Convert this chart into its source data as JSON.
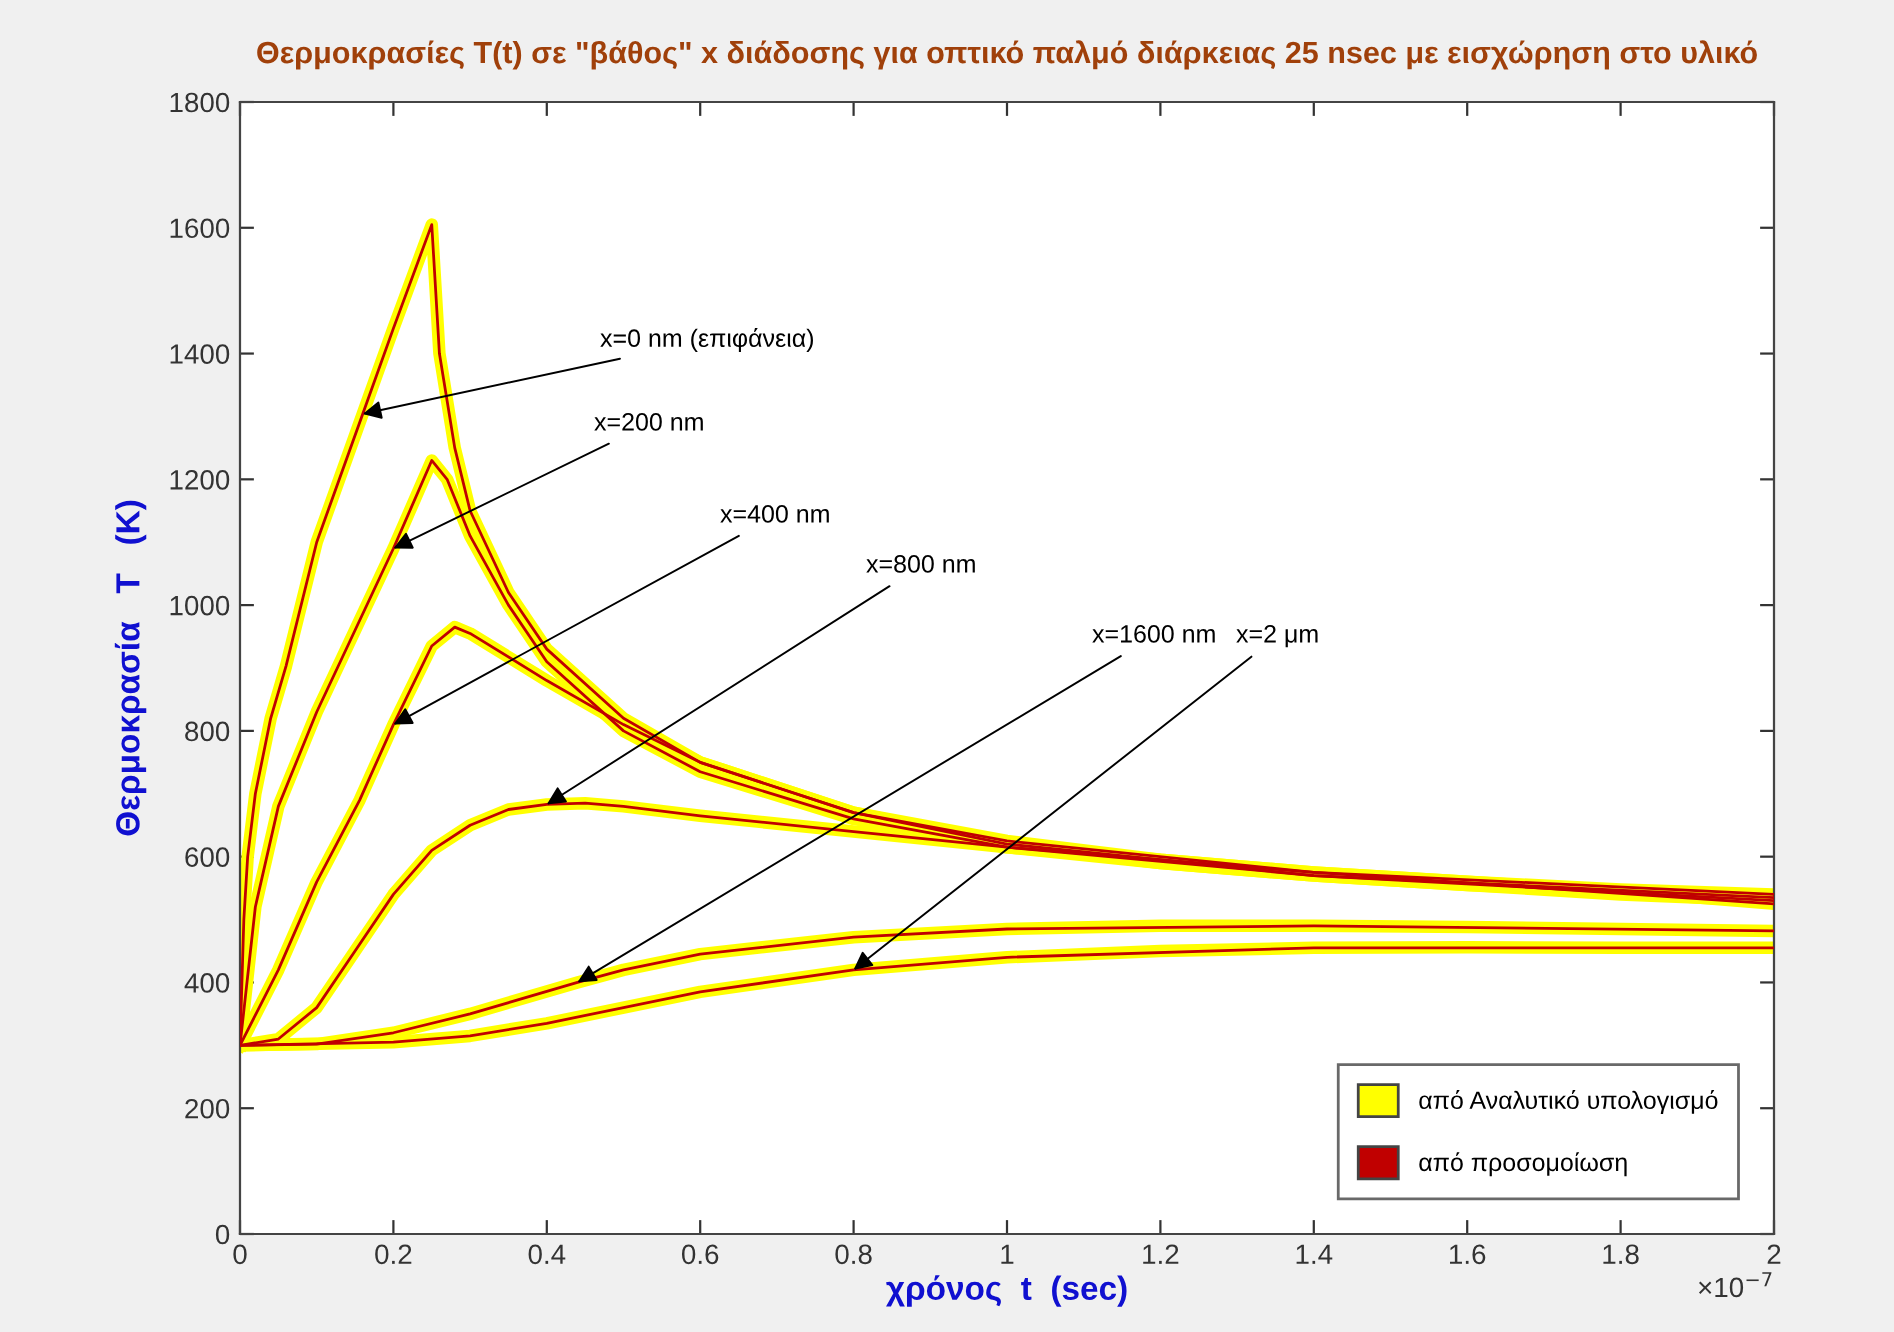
{
  "chart_data": {
    "type": "line",
    "title": "Θερμοκρασίες T(t) σε \"βάθος\" x διάδοσης για οπτικό παλμό διάρκειας 25 nsec με εισχώρηση στο υλικό",
    "xlabel": "χρόνος  t  (sec)",
    "ylabel": "Θερμοκρασία   T   (K)",
    "xlim": [
      0,
      2
    ],
    "ylim": [
      0,
      1800
    ],
    "xticks": [
      0,
      0.2,
      0.4,
      0.6,
      0.8,
      1,
      1.2,
      1.4,
      1.6,
      1.8,
      2
    ],
    "yticks": [
      0,
      200,
      400,
      600,
      800,
      1000,
      1200,
      1400,
      1600,
      1800
    ],
    "grid": false,
    "legend": "bottom right",
    "marker": "none",
    "line_style": "solid",
    "annotations": [
      "×10$^{−7}$",
      {
        "text": "x=0 nm (επιφάνεια)",
        "x": 0.16,
        "y": 1304
      },
      {
        "text": "x=200 nm",
        "x": 0.2,
        "y": 1090
      },
      {
        "text": "x=400 nm",
        "x": 0.2,
        "y": 810
      },
      {
        "text": "x=800 nm",
        "x": 0.4,
        "y": 683
      },
      {
        "text": "x=1600 nm",
        "x": 0.44,
        "y": 400
      },
      {
        "text": "x=2 μm",
        "x": 0.8,
        "y": 420
      }
    ],
    "series": [
      {
        "name": "από Αναλυτικό υπολογισμό",
        "color": "#ffff00",
        "x": [
          0,
          0.005,
          0.01,
          0.02,
          0.04,
          0.06,
          0.1,
          0.16,
          0.2,
          0.25,
          0.26,
          0.28,
          0.3,
          0.35,
          0.4,
          0.5,
          0.6,
          0.8,
          1.0,
          1.2,
          1.4,
          1.6,
          1.8,
          2.0
        ],
        "values": [
          300,
          500,
          600,
          700,
          820,
          903,
          1100,
          1304,
          1440,
          1605,
          1400,
          1250,
          1150,
          1020,
          930,
          820,
          750,
          670,
          625,
          595,
          575,
          560,
          548,
          540
        ]
      },
      {
        "color": "#ffff00",
        "x": [
          0,
          0.02,
          0.05,
          0.1,
          0.15,
          0.2,
          0.25,
          0.27,
          0.3,
          0.35,
          0.4,
          0.5,
          0.6,
          0.8,
          1.0,
          1.2,
          1.4,
          1.6,
          1.8,
          2.0
        ],
        "values": [
          300,
          520,
          680,
          830,
          960,
          1090,
          1230,
          1200,
          1110,
          1000,
          910,
          800,
          735,
          660,
          615,
          590,
          570,
          555,
          545,
          535
        ]
      },
      {
        "color": "#ffff00",
        "x": [
          0,
          0.05,
          0.1,
          0.156,
          0.2,
          0.25,
          0.28,
          0.3,
          0.4,
          0.5,
          0.6,
          0.8,
          1.0,
          1.2,
          1.4,
          1.6,
          1.8,
          2.0
        ],
        "values": [
          300,
          420,
          560,
          690,
          810,
          935,
          965,
          955,
          880,
          810,
          750,
          670,
          620,
          590,
          570,
          555,
          540,
          530
        ]
      },
      {
        "color": "#ffff00",
        "x": [
          0,
          0.05,
          0.1,
          0.15,
          0.2,
          0.25,
          0.3,
          0.35,
          0.4,
          0.45,
          0.5,
          0.6,
          0.8,
          1.0,
          1.2,
          1.4,
          1.6,
          1.8,
          2.0
        ],
        "values": [
          300,
          310,
          360,
          450,
          540,
          610,
          650,
          675,
          683,
          685,
          680,
          665,
          640,
          615,
          595,
          575,
          560,
          545,
          525
        ]
      },
      {
        "color": "#ffff00",
        "x": [
          0,
          0.1,
          0.2,
          0.3,
          0.44,
          0.5,
          0.6,
          0.8,
          1.0,
          1.2,
          1.4,
          1.6,
          1.8,
          2.0
        ],
        "values": [
          300,
          302,
          320,
          350,
          400,
          420,
          445,
          472,
          485,
          490,
          490,
          488,
          485,
          482
        ]
      },
      {
        "color": "#ffff00",
        "x": [
          0,
          0.2,
          0.3,
          0.4,
          0.5,
          0.6,
          0.8,
          1.0,
          1.2,
          1.4,
          1.6,
          1.8,
          2.0
        ],
        "values": [
          300,
          305,
          315,
          335,
          360,
          385,
          420,
          440,
          450,
          455,
          456,
          455,
          455
        ]
      },
      {
        "name": "από προσομοίωση",
        "color": "#c00000",
        "x": [
          0,
          0.005,
          0.01,
          0.02,
          0.04,
          0.06,
          0.1,
          0.16,
          0.2,
          0.25,
          0.26,
          0.28,
          0.3,
          0.35,
          0.4,
          0.5,
          0.6,
          0.8,
          1.0,
          1.4,
          2.0
        ],
        "values": [
          300,
          500,
          600,
          700,
          820,
          903,
          1100,
          1304,
          1440,
          1605,
          1400,
          1250,
          1150,
          1020,
          930,
          820,
          750,
          670,
          625,
          575,
          540
        ]
      },
      {
        "color": "#c00000",
        "x": [
          0,
          0.02,
          0.05,
          0.1,
          0.15,
          0.2,
          0.25,
          0.27,
          0.3,
          0.35,
          0.4,
          0.5,
          0.6,
          0.8,
          1.0,
          1.4,
          2.0
        ],
        "values": [
          300,
          520,
          680,
          830,
          960,
          1090,
          1230,
          1200,
          1110,
          1000,
          910,
          800,
          735,
          660,
          615,
          570,
          535
        ]
      },
      {
        "color": "#c00000",
        "x": [
          0,
          0.05,
          0.1,
          0.156,
          0.2,
          0.25,
          0.28,
          0.3,
          0.4,
          0.5,
          0.6,
          0.8,
          1.0,
          1.4,
          2.0
        ],
        "values": [
          300,
          420,
          560,
          690,
          810,
          935,
          965,
          955,
          880,
          810,
          750,
          670,
          620,
          570,
          530
        ]
      },
      {
        "color": "#c00000",
        "x": [
          0,
          0.05,
          0.1,
          0.15,
          0.2,
          0.25,
          0.3,
          0.35,
          0.4,
          0.45,
          0.5,
          0.6,
          0.8,
          1.0,
          1.4,
          2.0
        ],
        "values": [
          300,
          310,
          360,
          450,
          540,
          610,
          650,
          675,
          683,
          685,
          680,
          665,
          640,
          615,
          575,
          525
        ]
      },
      {
        "color": "#c00000",
        "x": [
          0,
          0.1,
          0.2,
          0.3,
          0.44,
          0.5,
          0.6,
          0.8,
          1.0,
          1.4,
          2.0
        ],
        "values": [
          300,
          302,
          320,
          350,
          400,
          420,
          445,
          472,
          485,
          490,
          482
        ]
      },
      {
        "color": "#c00000",
        "x": [
          0,
          0.2,
          0.3,
          0.4,
          0.5,
          0.6,
          0.8,
          1.0,
          1.4,
          2.0
        ],
        "values": [
          300,
          305,
          315,
          335,
          360,
          385,
          420,
          440,
          455,
          455
        ]
      }
    ]
  }
}
